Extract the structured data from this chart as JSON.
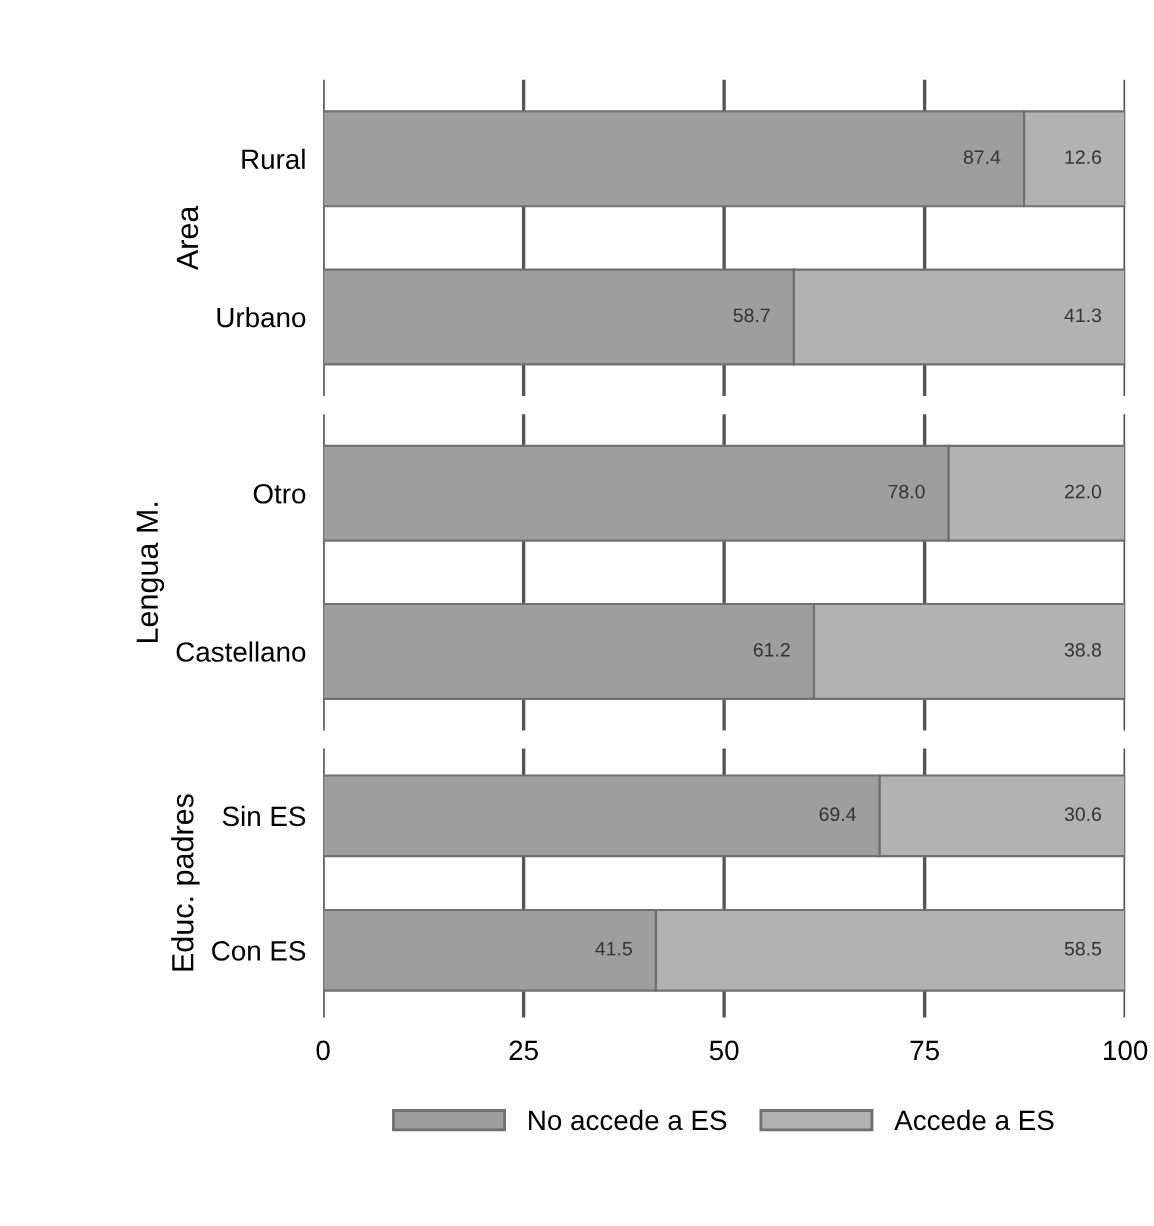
{
  "chart_data": [
    {
      "type": "bar",
      "orientation": "horizontal",
      "stacked": true,
      "ylabel": "Area",
      "categories": [
        "Rural",
        "Urbano"
      ],
      "xlim": [
        0,
        100
      ],
      "xticks": [
        0,
        25,
        50,
        75,
        100
      ],
      "grid": "x",
      "tick_labels": "y",
      "series": [
        {
          "color": "#9e9e9e",
          "values": [
            87.4,
            58.7
          ],
          "value_labels": [
            "87.4",
            "58.7"
          ]
        },
        {
          "color": "#b2b2b2",
          "values": [
            12.6,
            41.3
          ],
          "value_labels": [
            "12.6",
            "41.3"
          ]
        }
      ]
    },
    {
      "type": "bar",
      "orientation": "horizontal",
      "stacked": true,
      "ylabel": "Lengua M.",
      "categories": [
        "Otro",
        "Castellano"
      ],
      "xlim": [
        0,
        100
      ],
      "xticks": [
        0,
        25,
        50,
        75,
        100
      ],
      "grid": "x",
      "tick_labels": "y",
      "series": [
        {
          "color": "#9e9e9e",
          "values": [
            78.0,
            61.2
          ],
          "value_labels": [
            "78.0",
            "61.2"
          ]
        },
        {
          "color": "#b2b2b2",
          "values": [
            22.0,
            38.8
          ],
          "value_labels": [
            "22.0",
            "38.8"
          ]
        }
      ]
    },
    {
      "type": "bar",
      "orientation": "horizontal",
      "stacked": true,
      "ylabel": "Educ. padres",
      "categories": [
        "Sin ES",
        "Con ES"
      ],
      "xlim": [
        0,
        100
      ],
      "xticks": [
        0,
        25,
        50,
        75,
        100
      ],
      "grid": "x",
      "legend": "bottom",
      "series": [
        {
          "name": "No accede a ES",
          "color": "#9e9e9e",
          "values": [
            69.4,
            41.5
          ],
          "value_labels": [
            "69.4",
            "41.5"
          ]
        },
        {
          "name": "Accede a ES",
          "color": "#b2b2b2",
          "values": [
            30.6,
            58.5
          ],
          "value_labels": [
            "30.6",
            "58.5"
          ]
        }
      ]
    }
  ]
}
